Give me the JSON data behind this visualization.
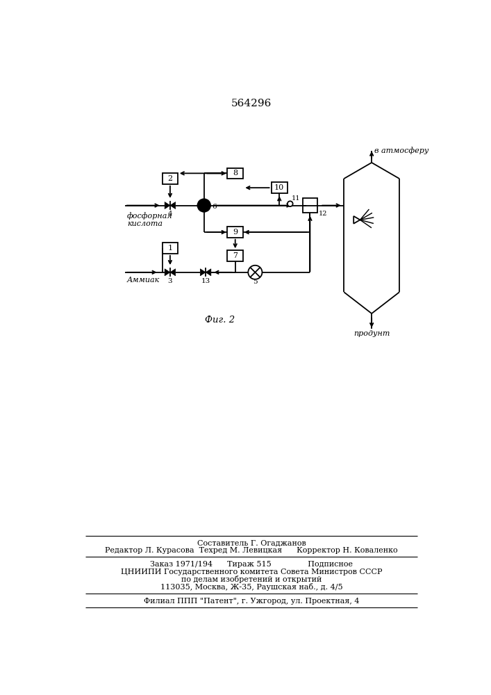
{
  "title": "564296",
  "fig2_label": "Фиг. 2",
  "background_color": "#ffffff",
  "line_color": "#000000",
  "footer_lines": [
    "Составитель Г. Огаджанов",
    "Редактор Л. Курасова  Техред М. Левицкая      Корректор Н. Коваленко",
    "Заказ 1971/194      Тираж 515               Подписное",
    "ЦНИИПИ Государственного комитета Совета Министров СССР",
    "по делам изобретений и открытий",
    "113035, Москва, Ж-35, Раушская наб., д. 4/5",
    "Филиал ППП \"Патент\", г. Ужгород, ул. Проектная, 4"
  ],
  "fosfor_label": "фосфорная\nкислота",
  "ammiak_label": "Аммиак",
  "atmosfera_label": "в атмосферу",
  "produkt_label": "продунт"
}
